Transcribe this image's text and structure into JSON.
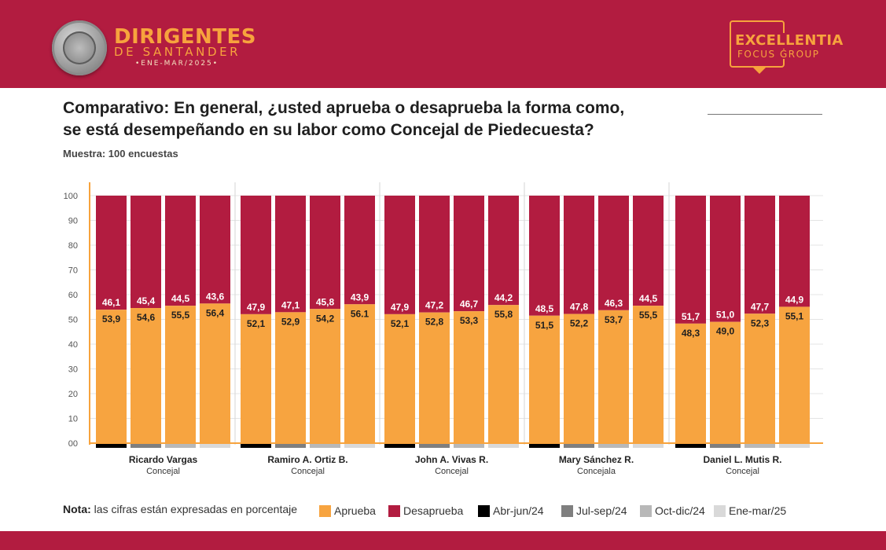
{
  "header": {
    "brand_main": "DIRIGENTES",
    "brand_sub": "DE SANTANDER",
    "brand_date": "•ENE-MAR/2025•",
    "seal_text": "SANTANDER",
    "partner_main": "EXCELLENTIA",
    "partner_sub": "FOCUS GROUP"
  },
  "title_line1": "Comparativo: En general, ¿usted aprueba o desaprueba la forma como,",
  "title_line2": "se está desempeñando en su labor como Concejal de Piedecuesta?",
  "sample": "Muestra: 100 encuestas",
  "note_prefix": "Nota:",
  "note_text": "las cifras están expresadas en porcentaje",
  "legend": [
    {
      "label": "Aprueba",
      "color": "#f7a440"
    },
    {
      "label": "Desaprueba",
      "color": "#b21c40"
    },
    {
      "label": "Abr-jun/24",
      "color": "#000000"
    },
    {
      "label": "Jul-sep/24",
      "color": "#7f7f7f"
    },
    {
      "label": "Oct-dic/24",
      "color": "#b8b8b8"
    },
    {
      "label": "Ene-mar/25",
      "color": "#d9d9d9"
    }
  ],
  "colors": {
    "approve": "#f7a440",
    "disapprove": "#b21c40",
    "header_band": "#b21c40",
    "brand_orange": "#f7a33d"
  },
  "chart_data": {
    "type": "bar",
    "stacked": true,
    "ylim": [
      0,
      100
    ],
    "yticks": [
      "00",
      "10",
      "20",
      "30",
      "40",
      "50",
      "60",
      "70",
      "80",
      "90",
      "100"
    ],
    "periods": [
      "Abr-jun/24",
      "Jul-sep/24",
      "Oct-dic/24",
      "Ene-mar/25"
    ],
    "period_colors": [
      "#000000",
      "#7f7f7f",
      "#b8b8b8",
      "#d9d9d9"
    ],
    "grid": true,
    "groups": [
      {
        "name": "Ricardo Vargas",
        "role": "Concejal",
        "aprueba": [
          53.9,
          54.6,
          55.5,
          56.4
        ],
        "desaprueba": [
          46.1,
          45.4,
          44.5,
          43.6
        ],
        "aprueba_labels": [
          "53,9",
          "54,6",
          "55,5",
          "56,4"
        ],
        "desaprueba_labels": [
          "46,1",
          "45,4",
          "44,5",
          "43,6"
        ]
      },
      {
        "name": "Ramiro A. Ortiz B.",
        "role": "Concejal",
        "aprueba": [
          52.1,
          52.9,
          54.2,
          56.1
        ],
        "desaprueba": [
          47.9,
          47.1,
          45.8,
          43.9
        ],
        "aprueba_labels": [
          "52,1",
          "52,9",
          "54,2",
          "56.1"
        ],
        "desaprueba_labels": [
          "47,9",
          "47,1",
          "45,8",
          "43,9"
        ]
      },
      {
        "name": "John A. Vivas R.",
        "role": "Concejal",
        "aprueba": [
          52.1,
          52.8,
          53.3,
          55.8
        ],
        "desaprueba": [
          47.9,
          47.2,
          46.7,
          44.2
        ],
        "aprueba_labels": [
          "52,1",
          "52,8",
          "53,3",
          "55,8"
        ],
        "desaprueba_labels": [
          "47,9",
          "47,2",
          "46,7",
          "44,2"
        ]
      },
      {
        "name": "Mary Sánchez R.",
        "role": "Concejala",
        "aprueba": [
          51.5,
          52.2,
          53.7,
          55.5
        ],
        "desaprueba": [
          48.5,
          47.8,
          46.3,
          44.5
        ],
        "aprueba_labels": [
          "51,5",
          "52,2",
          "53,7",
          "55,5"
        ],
        "desaprueba_labels": [
          "48,5",
          "47,8",
          "46,3",
          "44,5"
        ]
      },
      {
        "name": "Daniel L. Mutis R.",
        "role": "Concejal",
        "aprueba": [
          48.3,
          49.0,
          52.3,
          55.1
        ],
        "desaprueba": [
          51.7,
          51.0,
          47.7,
          44.9
        ],
        "aprueba_labels": [
          "48,3",
          "49,0",
          "52,3",
          "55,1"
        ],
        "desaprueba_labels": [
          "51,7",
          "51,0",
          "47,7",
          "44,9"
        ]
      }
    ]
  }
}
